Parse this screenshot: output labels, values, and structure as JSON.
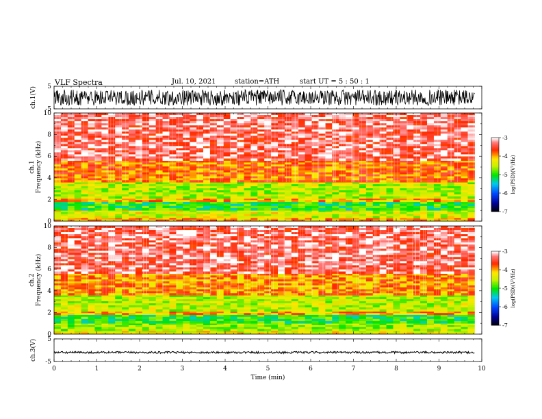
{
  "header": {
    "title": "VLF  Spectra",
    "date": "Jul.  10, 2021",
    "station": "station=ATH",
    "start_ut": "start  UT  =    5  : 50 : 1"
  },
  "chart_data": [
    {
      "type": "line",
      "panel": "ch1-waveform",
      "ylabel": "ch.1(V)",
      "ylim": [
        -5,
        5
      ],
      "yticks": [
        "5",
        "-5"
      ],
      "xlim": [
        0,
        10
      ],
      "data_extent_x": [
        0,
        9.83
      ],
      "series": [
        {
          "name": "",
          "amplitude_range": [
            -3.5,
            3.5
          ],
          "color": "#000000"
        }
      ]
    },
    {
      "type": "heatmap",
      "panel": "ch1-spectrogram",
      "ylabel": "ch.1\nFrequency  (kHz)",
      "ylim": [
        0,
        10
      ],
      "yticks": [
        "0",
        "2",
        "4",
        "6",
        "8",
        "10"
      ],
      "xlim": [
        0,
        10
      ],
      "data_extent_x": [
        0,
        9.83
      ],
      "colorbar": {
        "label": "log(PSD)(V²/Hz)",
        "range": [
          -7,
          -3
        ],
        "ticks": [
          "-3",
          "-4",
          "-5",
          "-6",
          "-7"
        ]
      },
      "bands": [
        {
          "f_range": [
            0,
            0.3
          ],
          "log_psd": -4.0
        },
        {
          "f_range": [
            0.3,
            1.0
          ],
          "log_psd": -4.4
        },
        {
          "f_range": [
            1.0,
            1.8
          ],
          "log_psd": -5.0
        },
        {
          "f_range": [
            1.8,
            2.1
          ],
          "log_psd": -4.0
        },
        {
          "f_range": [
            2.1,
            3.6
          ],
          "log_psd": -4.5
        },
        {
          "f_range": [
            3.6,
            5.6
          ],
          "log_psd": -3.8
        },
        {
          "f_range": [
            5.6,
            10.0
          ],
          "log_psd": -3.3
        }
      ]
    },
    {
      "type": "heatmap",
      "panel": "ch2-spectrogram",
      "ylabel": "ch.2\nFrequency  (kHz)",
      "ylim": [
        0,
        10
      ],
      "yticks": [
        "0",
        "2",
        "4",
        "6",
        "8",
        "10"
      ],
      "xlim": [
        0,
        10
      ],
      "data_extent_x": [
        0,
        9.83
      ],
      "colorbar": {
        "label": "log(PSD)(V²/Hz)",
        "range": [
          -7,
          -3
        ],
        "ticks": [
          "-3",
          "-4",
          "-5",
          "-6",
          "-7"
        ]
      },
      "bands": [
        {
          "f_range": [
            0,
            0.3
          ],
          "log_psd": -4.3
        },
        {
          "f_range": [
            0.3,
            1.0
          ],
          "log_psd": -4.6
        },
        {
          "f_range": [
            1.0,
            1.8
          ],
          "log_psd": -5.0
        },
        {
          "f_range": [
            1.8,
            2.1
          ],
          "log_psd": -4.0
        },
        {
          "f_range": [
            2.1,
            3.6
          ],
          "log_psd": -4.5
        },
        {
          "f_range": [
            3.6,
            5.6
          ],
          "log_psd": -3.9
        },
        {
          "f_range": [
            5.6,
            10.0
          ],
          "log_psd": -3.3
        }
      ]
    },
    {
      "type": "line",
      "panel": "ch3-waveform",
      "ylabel": "ch.3(V)",
      "ylim": [
        -5,
        5
      ],
      "yticks": [
        "5",
        "-5"
      ],
      "xlabel": "Time  (min)",
      "xlim": [
        0,
        10
      ],
      "xticks": [
        "0",
        "1",
        "2",
        "3",
        "4",
        "5",
        "6",
        "7",
        "8",
        "9",
        "10"
      ],
      "data_extent_x": [
        0,
        9.83
      ],
      "series": [
        {
          "name": "",
          "amplitude_range": [
            -0.45,
            0.45
          ],
          "offset": -1.0,
          "color": "#000000"
        }
      ]
    }
  ]
}
